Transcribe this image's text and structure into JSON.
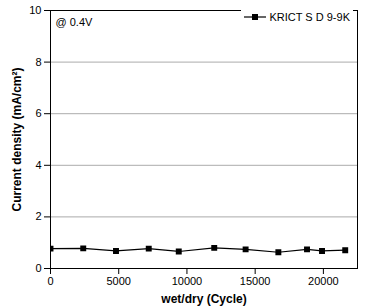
{
  "chart_data": {
    "type": "line",
    "annotation": "@ 0.4V",
    "x_label": "wet/dry (Cycle)",
    "y_label": "Current density (mA/cm²)",
    "x": [
      0,
      2400,
      4800,
      7200,
      9400,
      12000,
      14300,
      16700,
      18800,
      19900,
      21600
    ],
    "series": [
      {
        "name": "KRICT S D 9-9K",
        "color": "#000000",
        "marker": "square",
        "line_style": "solid",
        "values": [
          0.77,
          0.78,
          0.68,
          0.77,
          0.66,
          0.8,
          0.74,
          0.63,
          0.74,
          0.68,
          0.71
        ]
      }
    ],
    "xlim": [
      0,
      22500
    ],
    "xticks": [
      0,
      5000,
      10000,
      15000,
      20000
    ],
    "ylim": [
      0,
      10
    ],
    "yticks": [
      0,
      2,
      4,
      6,
      8,
      10
    ],
    "grid": true,
    "legend": "top-right"
  }
}
